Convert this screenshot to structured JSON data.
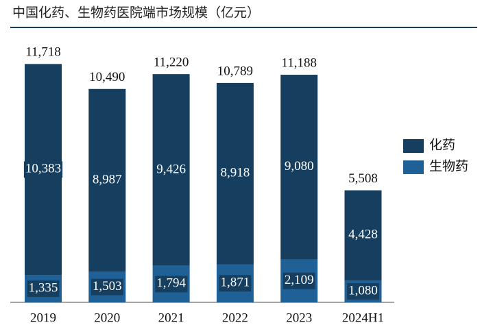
{
  "chart_data": {
    "type": "stacked_bar",
    "title": "中国化药、生物药医院端市场规模（亿元）",
    "categories": [
      "2019",
      "2020",
      "2021",
      "2022",
      "2023",
      "2024H1"
    ],
    "series": [
      {
        "name": "生物药",
        "color": "#1f6196",
        "values": [
          1335,
          1503,
          1794,
          1871,
          2109,
          1080
        ],
        "value_labels": [
          "1,335",
          "1,503",
          "1,794",
          "1,871",
          "2,109",
          "1,080"
        ]
      },
      {
        "name": "化药",
        "color": "#163e5f",
        "values": [
          10383,
          8987,
          9426,
          8918,
          9080,
          4428
        ],
        "value_labels": [
          "10,383",
          "8,987",
          "9,426",
          "8,918",
          "9,080",
          "4,428"
        ]
      }
    ],
    "totals": {
      "values": [
        11718,
        10490,
        11220,
        10789,
        11188,
        5508
      ],
      "value_labels": [
        "11,718",
        "10,490",
        "11,220",
        "10,789",
        "11,188",
        "5,508"
      ]
    },
    "ylim": [
      0,
      12000
    ],
    "legend": "right"
  }
}
